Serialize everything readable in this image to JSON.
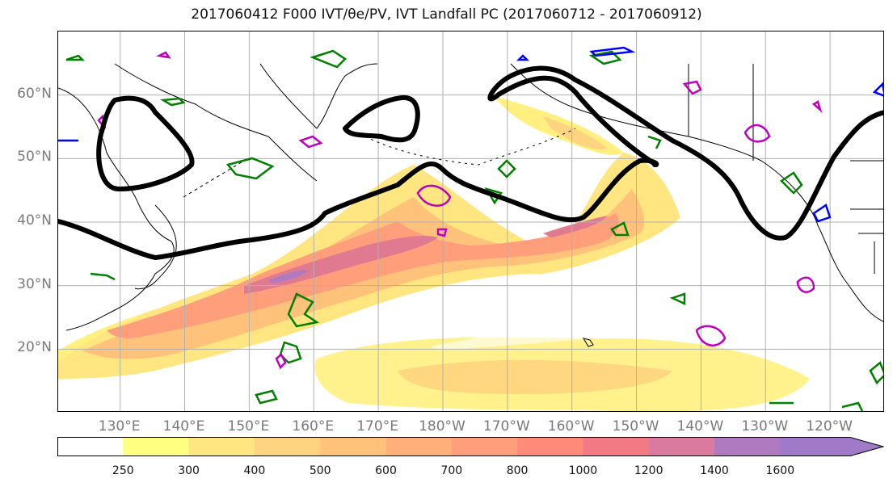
{
  "title": "2017060412 F000 IVT/θe/PV, IVT Landfall PC (2017060712 - 2017060912)",
  "map": {
    "lat_labels": [
      {
        "text": "60°N",
        "lat": 60
      },
      {
        "text": "50°N",
        "lat": 50
      },
      {
        "text": "40°N",
        "lat": 40
      },
      {
        "text": "30°N",
        "lat": 30
      },
      {
        "text": "20°N",
        "lat": 20
      }
    ],
    "lon_labels": [
      {
        "text": "130°E",
        "lon": 130
      },
      {
        "text": "140°E",
        "lon": 140
      },
      {
        "text": "150°E",
        "lon": 150
      },
      {
        "text": "160°E",
        "lon": 160
      },
      {
        "text": "170°E",
        "lon": 170
      },
      {
        "text": "180°W",
        "lon": 180
      },
      {
        "text": "170°W",
        "lon": 190
      },
      {
        "text": "160°W",
        "lon": 200
      },
      {
        "text": "150°W",
        "lon": 210
      },
      {
        "text": "140°W",
        "lon": 220
      },
      {
        "text": "130°W",
        "lon": 230
      },
      {
        "text": "120°W",
        "lon": 240
      }
    ],
    "gridlines": true,
    "colors": {
      "pc_contour": "#000000",
      "theta_e_contour": "#008000",
      "pv_contour": "#c000c0",
      "blue_contour": "#0000ff",
      "coastline": "#000000"
    }
  },
  "colorbar": {
    "ticks": [
      "250",
      "300",
      "400",
      "500",
      "600",
      "700",
      "800",
      "1000",
      "1200",
      "1400",
      "1600"
    ],
    "colors": [
      "#ffffff",
      "#ffff80",
      "#ffe680",
      "#ffd480",
      "#ffc27a",
      "#ffb07a",
      "#ff9e7a",
      "#ff8a7a",
      "#f27a85",
      "#d97a9e",
      "#b07ac0",
      "#a07ac8"
    ],
    "extend": "max"
  }
}
